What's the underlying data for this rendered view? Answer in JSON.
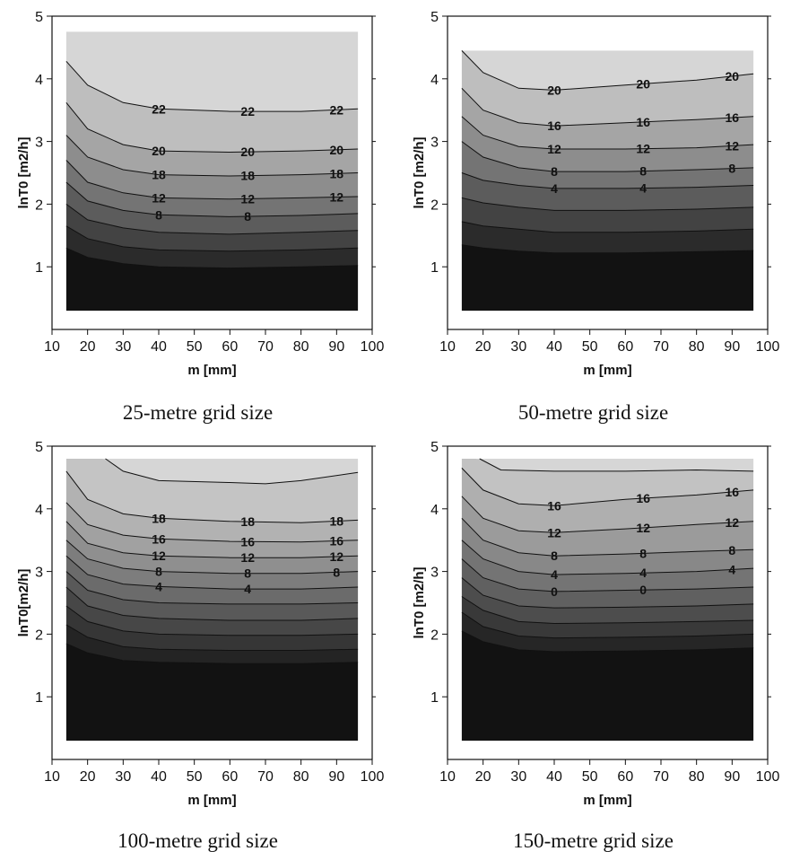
{
  "chart_data": [
    {
      "type": "contour",
      "caption": "25-metre grid size",
      "xlabel": "m [mm]",
      "ylabel": "lnT0 [m2/h]",
      "xlim": [
        10,
        100
      ],
      "ylim": [
        0,
        5
      ],
      "xticks": [
        "10",
        "20",
        "30",
        "40",
        "50",
        "60",
        "70",
        "80",
        "90",
        "100"
      ],
      "yticks": [
        "1",
        "2",
        "3",
        "4",
        "5"
      ],
      "data_x_range": [
        14,
        96
      ],
      "data_y_range": [
        0.3,
        4.75
      ],
      "top_level": 4.75,
      "contour_labels": [
        "22",
        "22",
        "22",
        "20",
        "20",
        "20",
        "18",
        "18",
        "18",
        "12",
        "12",
        "12",
        "8",
        "8"
      ],
      "lines": [
        {
          "x": [
            14,
            20,
            30,
            40,
            60,
            80,
            96
          ],
          "y": [
            4.28,
            3.9,
            3.62,
            3.52,
            3.48,
            3.48,
            3.52
          ]
        },
        {
          "x": [
            14,
            20,
            30,
            40,
            60,
            80,
            96
          ],
          "y": [
            3.62,
            3.2,
            2.95,
            2.85,
            2.83,
            2.85,
            2.88
          ]
        },
        {
          "x": [
            14,
            20,
            30,
            40,
            60,
            80,
            96
          ],
          "y": [
            3.1,
            2.75,
            2.55,
            2.47,
            2.45,
            2.47,
            2.5
          ]
        },
        {
          "x": [
            14,
            20,
            30,
            40,
            60,
            80,
            96
          ],
          "y": [
            2.7,
            2.35,
            2.18,
            2.1,
            2.08,
            2.1,
            2.12
          ]
        },
        {
          "x": [
            14,
            20,
            30,
            40,
            60,
            80,
            96
          ],
          "y": [
            2.35,
            2.05,
            1.9,
            1.83,
            1.8,
            1.82,
            1.85
          ]
        },
        {
          "x": [
            14,
            20,
            30,
            40,
            60,
            80,
            96
          ],
          "y": [
            2.0,
            1.75,
            1.62,
            1.55,
            1.52,
            1.55,
            1.58
          ]
        },
        {
          "x": [
            14,
            20,
            30,
            40,
            60,
            80,
            96
          ],
          "y": [
            1.65,
            1.45,
            1.32,
            1.27,
            1.25,
            1.27,
            1.3
          ]
        },
        {
          "x": [
            14,
            20,
            30,
            40,
            60,
            80,
            96
          ],
          "y": [
            1.3,
            1.15,
            1.05,
            1.0,
            0.98,
            1.0,
            1.02
          ]
        }
      ]
    },
    {
      "type": "contour",
      "caption": "50-metre grid size",
      "xlabel": "m [mm]",
      "ylabel": "lnT0 [m2/h]",
      "xlim": [
        10,
        100
      ],
      "ylim": [
        0,
        5
      ],
      "xticks": [
        "10",
        "20",
        "30",
        "40",
        "50",
        "60",
        "70",
        "80",
        "90",
        "100"
      ],
      "yticks": [
        "1",
        "2",
        "3",
        "4",
        "5"
      ],
      "data_x_range": [
        14,
        96
      ],
      "data_y_range": [
        0.3,
        4.45
      ],
      "top_level": 4.45,
      "contour_labels": [
        "20",
        "20",
        "20",
        "16",
        "16",
        "16",
        "12",
        "12",
        "12",
        "8",
        "8",
        "8",
        "4",
        "4"
      ],
      "lines": [
        {
          "x": [
            14,
            20,
            30,
            40,
            60,
            80,
            96
          ],
          "y": [
            4.45,
            4.1,
            3.85,
            3.82,
            3.9,
            3.98,
            4.08
          ]
        },
        {
          "x": [
            14,
            20,
            30,
            40,
            60,
            80,
            96
          ],
          "y": [
            3.85,
            3.5,
            3.3,
            3.25,
            3.3,
            3.35,
            3.4
          ]
        },
        {
          "x": [
            14,
            20,
            30,
            40,
            60,
            80,
            96
          ],
          "y": [
            3.4,
            3.1,
            2.92,
            2.88,
            2.88,
            2.9,
            2.95
          ]
        },
        {
          "x": [
            14,
            20,
            30,
            40,
            60,
            80,
            96
          ],
          "y": [
            3.0,
            2.75,
            2.58,
            2.52,
            2.52,
            2.55,
            2.58
          ]
        },
        {
          "x": [
            14,
            20,
            30,
            40,
            60,
            80,
            96
          ],
          "y": [
            2.5,
            2.38,
            2.3,
            2.25,
            2.25,
            2.27,
            2.3
          ]
        },
        {
          "x": [
            14,
            20,
            30,
            40,
            60,
            80,
            96
          ],
          "y": [
            2.1,
            2.02,
            1.95,
            1.9,
            1.9,
            1.92,
            1.95
          ]
        },
        {
          "x": [
            14,
            20,
            30,
            40,
            60,
            80,
            96
          ],
          "y": [
            1.72,
            1.65,
            1.6,
            1.55,
            1.55,
            1.57,
            1.6
          ]
        },
        {
          "x": [
            14,
            20,
            30,
            40,
            60,
            80,
            96
          ],
          "y": [
            1.35,
            1.3,
            1.25,
            1.22,
            1.22,
            1.24,
            1.26
          ]
        }
      ]
    },
    {
      "type": "contour",
      "caption": "100-metre grid size",
      "xlabel": "m [mm]",
      "ylabel": "lnT0[m2/h]",
      "xlim": [
        10,
        100
      ],
      "ylim": [
        0,
        5
      ],
      "xticks": [
        "10",
        "20",
        "30",
        "40",
        "50",
        "60",
        "70",
        "80",
        "90",
        "100"
      ],
      "yticks": [
        "1",
        "2",
        "3",
        "4",
        "5"
      ],
      "data_x_range": [
        14,
        96
      ],
      "data_y_range": [
        0.3,
        4.8
      ],
      "top_level": 4.8,
      "contour_labels": [
        "18",
        "18",
        "18",
        "16",
        "16",
        "16",
        "12",
        "12",
        "12",
        "8",
        "8",
        "8",
        "4",
        "4"
      ],
      "lines": [
        {
          "x": [
            25,
            30,
            40,
            60,
            70,
            80,
            96
          ],
          "y": [
            4.8,
            4.6,
            4.45,
            4.42,
            4.4,
            4.45,
            4.58
          ]
        },
        {
          "x": [
            14,
            20,
            30,
            40,
            60,
            80,
            96
          ],
          "y": [
            4.6,
            4.15,
            3.92,
            3.85,
            3.8,
            3.78,
            3.82
          ]
        },
        {
          "x": [
            14,
            20,
            30,
            40,
            60,
            80,
            96
          ],
          "y": [
            4.1,
            3.75,
            3.58,
            3.52,
            3.48,
            3.47,
            3.5
          ]
        },
        {
          "x": [
            14,
            20,
            30,
            40,
            60,
            80,
            96
          ],
          "y": [
            3.8,
            3.45,
            3.3,
            3.25,
            3.22,
            3.22,
            3.25
          ]
        },
        {
          "x": [
            14,
            20,
            30,
            40,
            60,
            80,
            96
          ],
          "y": [
            3.5,
            3.2,
            3.05,
            3.0,
            2.97,
            2.97,
            3.0
          ]
        },
        {
          "x": [
            14,
            20,
            30,
            40,
            60,
            80,
            96
          ],
          "y": [
            3.25,
            2.95,
            2.8,
            2.76,
            2.72,
            2.72,
            2.75
          ]
        },
        {
          "x": [
            14,
            20,
            30,
            40,
            60,
            80,
            96
          ],
          "y": [
            3.0,
            2.7,
            2.55,
            2.5,
            2.48,
            2.48,
            2.5
          ]
        },
        {
          "x": [
            14,
            20,
            30,
            40,
            60,
            80,
            96
          ],
          "y": [
            2.75,
            2.45,
            2.3,
            2.25,
            2.22,
            2.22,
            2.25
          ]
        },
        {
          "x": [
            14,
            20,
            30,
            40,
            60,
            80,
            96
          ],
          "y": [
            2.45,
            2.2,
            2.05,
            2.0,
            1.98,
            1.98,
            2.0
          ]
        },
        {
          "x": [
            14,
            20,
            30,
            40,
            60,
            80,
            96
          ],
          "y": [
            2.15,
            1.95,
            1.8,
            1.76,
            1.74,
            1.74,
            1.76
          ]
        },
        {
          "x": [
            14,
            20,
            30,
            40,
            60,
            80,
            96
          ],
          "y": [
            1.85,
            1.7,
            1.58,
            1.55,
            1.53,
            1.53,
            1.55
          ]
        }
      ]
    },
    {
      "type": "contour",
      "caption": "150-metre grid size",
      "xlabel": "m [mm]",
      "ylabel": "lnT0 [m2/h]",
      "xlim": [
        10,
        100
      ],
      "ylim": [
        0,
        5
      ],
      "xticks": [
        "10",
        "20",
        "30",
        "40",
        "50",
        "60",
        "70",
        "80",
        "90",
        "100"
      ],
      "yticks": [
        "1",
        "2",
        "3",
        "4",
        "5"
      ],
      "data_x_range": [
        14,
        96
      ],
      "data_y_range": [
        0.3,
        4.8
      ],
      "top_level": 4.8,
      "contour_labels": [
        "16",
        "16",
        "16",
        "12",
        "12",
        "12",
        "8",
        "8",
        "8",
        "4",
        "4",
        "4",
        "0",
        "0"
      ],
      "lines": [
        {
          "x": [
            19,
            25,
            40,
            60,
            80,
            96
          ],
          "y": [
            4.8,
            4.62,
            4.6,
            4.6,
            4.62,
            4.6
          ]
        },
        {
          "x": [
            14,
            20,
            30,
            40,
            60,
            80,
            96
          ],
          "y": [
            4.65,
            4.3,
            4.08,
            4.05,
            4.15,
            4.22,
            4.3
          ]
        },
        {
          "x": [
            14,
            20,
            30,
            40,
            60,
            80,
            96
          ],
          "y": [
            4.2,
            3.85,
            3.65,
            3.62,
            3.68,
            3.75,
            3.8
          ]
        },
        {
          "x": [
            14,
            20,
            30,
            40,
            60,
            80,
            96
          ],
          "y": [
            3.85,
            3.5,
            3.3,
            3.25,
            3.28,
            3.32,
            3.35
          ]
        },
        {
          "x": [
            14,
            20,
            30,
            40,
            60,
            80,
            96
          ],
          "y": [
            3.5,
            3.2,
            3.0,
            2.95,
            2.97,
            3.0,
            3.05
          ]
        },
        {
          "x": [
            14,
            20,
            30,
            40,
            60,
            80,
            96
          ],
          "y": [
            3.2,
            2.9,
            2.72,
            2.68,
            2.7,
            2.72,
            2.75
          ]
        },
        {
          "x": [
            14,
            20,
            30,
            40,
            60,
            80,
            96
          ],
          "y": [
            2.9,
            2.62,
            2.45,
            2.42,
            2.43,
            2.45,
            2.48
          ]
        },
        {
          "x": [
            14,
            20,
            30,
            40,
            60,
            80,
            96
          ],
          "y": [
            2.6,
            2.38,
            2.2,
            2.17,
            2.18,
            2.2,
            2.22
          ]
        },
        {
          "x": [
            14,
            20,
            30,
            40,
            60,
            80,
            96
          ],
          "y": [
            2.35,
            2.12,
            1.97,
            1.94,
            1.95,
            1.97,
            2.0
          ]
        },
        {
          "x": [
            14,
            20,
            30,
            40,
            60,
            80,
            96
          ],
          "y": [
            2.05,
            1.88,
            1.75,
            1.72,
            1.73,
            1.75,
            1.78
          ]
        }
      ]
    }
  ]
}
